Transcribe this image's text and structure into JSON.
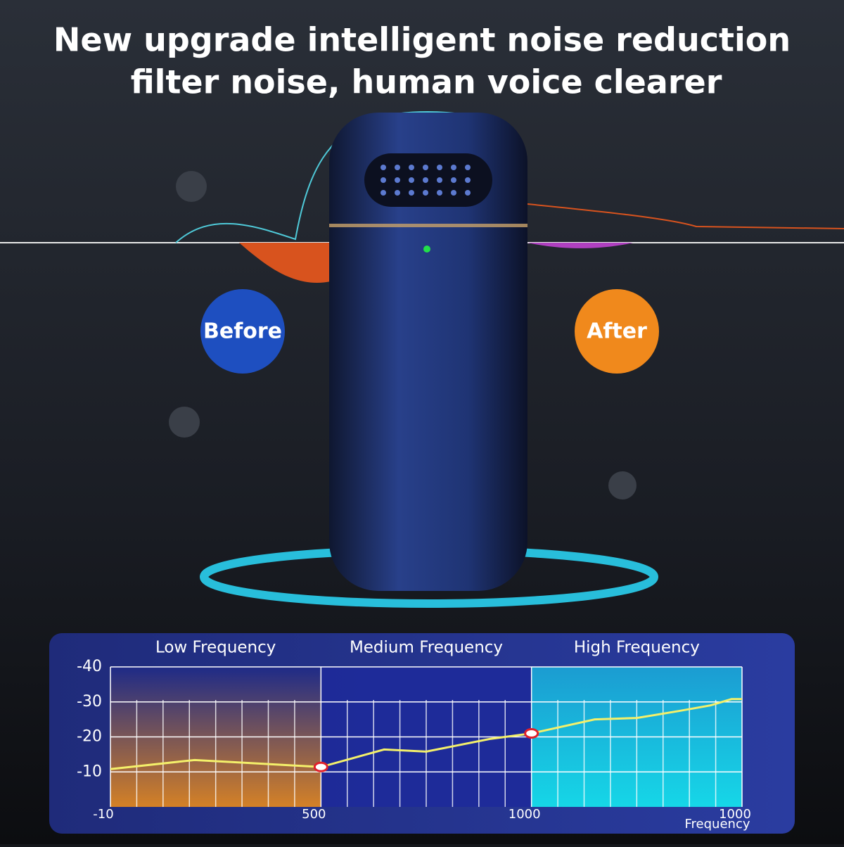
{
  "header": {
    "title_lines": [
      "New upgrade intelligent noise reduction",
      "filter noise, human voice clearer"
    ]
  },
  "labels": {
    "before": "Before",
    "after": "After"
  },
  "chart_data": {
    "type": "line",
    "band_names": [
      "Low Frequency",
      "Medium Frequency",
      "High Frequency"
    ],
    "x": [
      0,
      0.4,
      1,
      1.3,
      1.5,
      1.8,
      2,
      2.3,
      2.5,
      2.7,
      2.85,
      2.95,
      3
    ],
    "values": [
      -10.8,
      -13.4,
      -11.4,
      -16.4,
      -15.8,
      -19.4,
      -21,
      -25,
      -25.4,
      -27.4,
      -29,
      -30.8,
      -30.8
    ],
    "color": "#f4f06a",
    "xlim": [
      0,
      3
    ],
    "xticks": [
      {
        "value": 0,
        "label": "-10"
      },
      {
        "value": 1,
        "label": "500"
      },
      {
        "value": 2,
        "label": "1000"
      },
      {
        "value": 3,
        "label": "1000"
      }
    ],
    "xlabel": "Frequency",
    "ylim": [
      0,
      -40
    ],
    "yticks": [
      -40,
      -30,
      -20,
      -10
    ],
    "grid": true
  }
}
